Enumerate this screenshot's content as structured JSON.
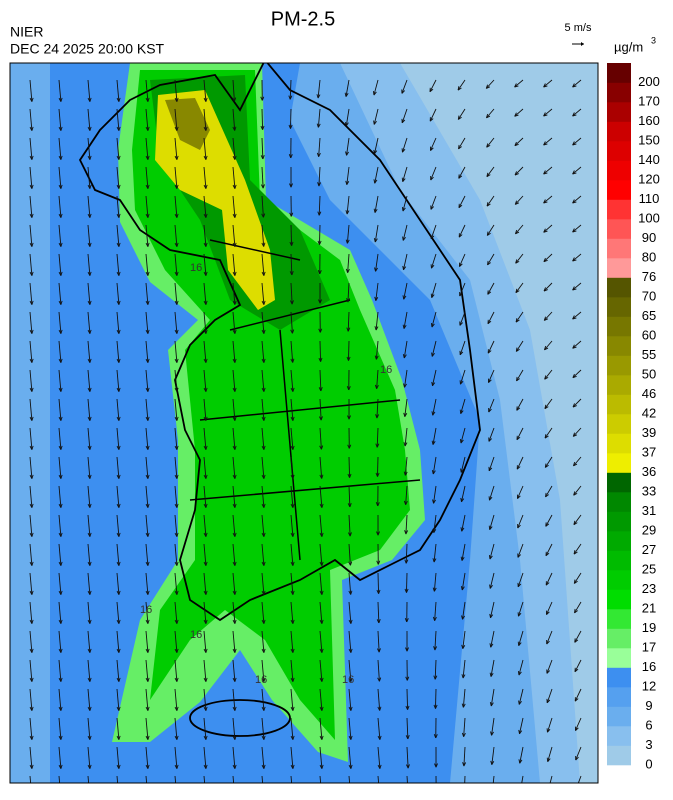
{
  "header": {
    "title": "PM-2.5",
    "agency": "NIER",
    "datetime": "DEC 24 2025 20:00 KST",
    "wind_scale": "5 m/s",
    "unit": "µg/m",
    "unit_exponent": "3"
  },
  "colorbar": {
    "labels": [
      0,
      3,
      6,
      9,
      12,
      16,
      17,
      19,
      21,
      23,
      25,
      27,
      29,
      31,
      33,
      36,
      37,
      39,
      42,
      46,
      50,
      55,
      60,
      65,
      70,
      76,
      80,
      90,
      100,
      110,
      120,
      140,
      150,
      160,
      170,
      200
    ],
    "colors": [
      "#9fcbe8",
      "#88bfee",
      "#6aaeee",
      "#55a0ef",
      "#3d8ff0",
      "#99ff99",
      "#66ee66",
      "#33e833",
      "#00dd00",
      "#00cc00",
      "#00bb00",
      "#00aa00",
      "#009900",
      "#008800",
      "#006600",
      "#eeee00",
      "#dddd00",
      "#cccc00",
      "#bbbb00",
      "#aaaa00",
      "#999900",
      "#888800",
      "#777700",
      "#666600",
      "#555500",
      "#ff9999",
      "#ff7777",
      "#ff5555",
      "#ff3333",
      "#ff0000",
      "#ee0000",
      "#dd0000",
      "#cc0000",
      "#aa0000",
      "#880000",
      "#660000"
    ]
  },
  "map": {
    "contour_labels": [
      "16",
      "16",
      "16",
      "16",
      "16",
      "16"
    ]
  }
}
